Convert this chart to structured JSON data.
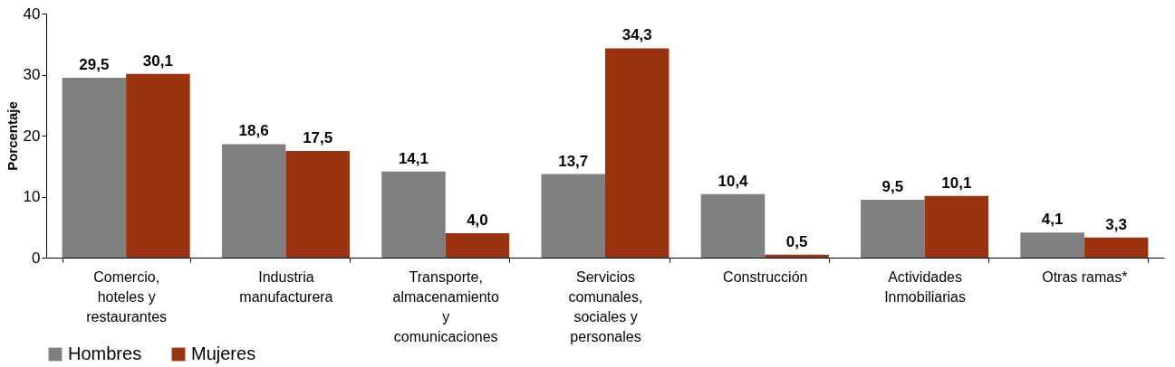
{
  "chart_data": {
    "type": "bar",
    "ylabel": "Porcentaje",
    "categories": [
      "Comercio, hoteles y restaurantes",
      "Industria manufacturera",
      "Transporte, almacenamiento y comunicaciones",
      "Servicios comunales, sociales y personales",
      "Construcción",
      "Actividades Inmobiliarias",
      "Otras ramas*"
    ],
    "series": [
      {
        "name": "Hombres",
        "color": "#808080",
        "values": [
          29.5,
          18.6,
          14.1,
          13.7,
          10.4,
          9.5,
          4.1
        ],
        "value_labels": [
          "29,5",
          "18,6",
          "14,1",
          "13,7",
          "10,4",
          "9,5",
          "4,1"
        ]
      },
      {
        "name": "Mujeres",
        "color": "#993310",
        "values": [
          30.1,
          17.5,
          4.0,
          34.3,
          0.5,
          10.1,
          3.3
        ],
        "value_labels": [
          "30,1",
          "17,5",
          "4,0",
          "34,3",
          "0,5",
          "10,1",
          "3,3"
        ]
      }
    ],
    "ylim": [
      0,
      40
    ],
    "yticks": [
      0,
      10,
      20,
      30,
      40
    ],
    "grid": false,
    "legend": "bottom"
  }
}
